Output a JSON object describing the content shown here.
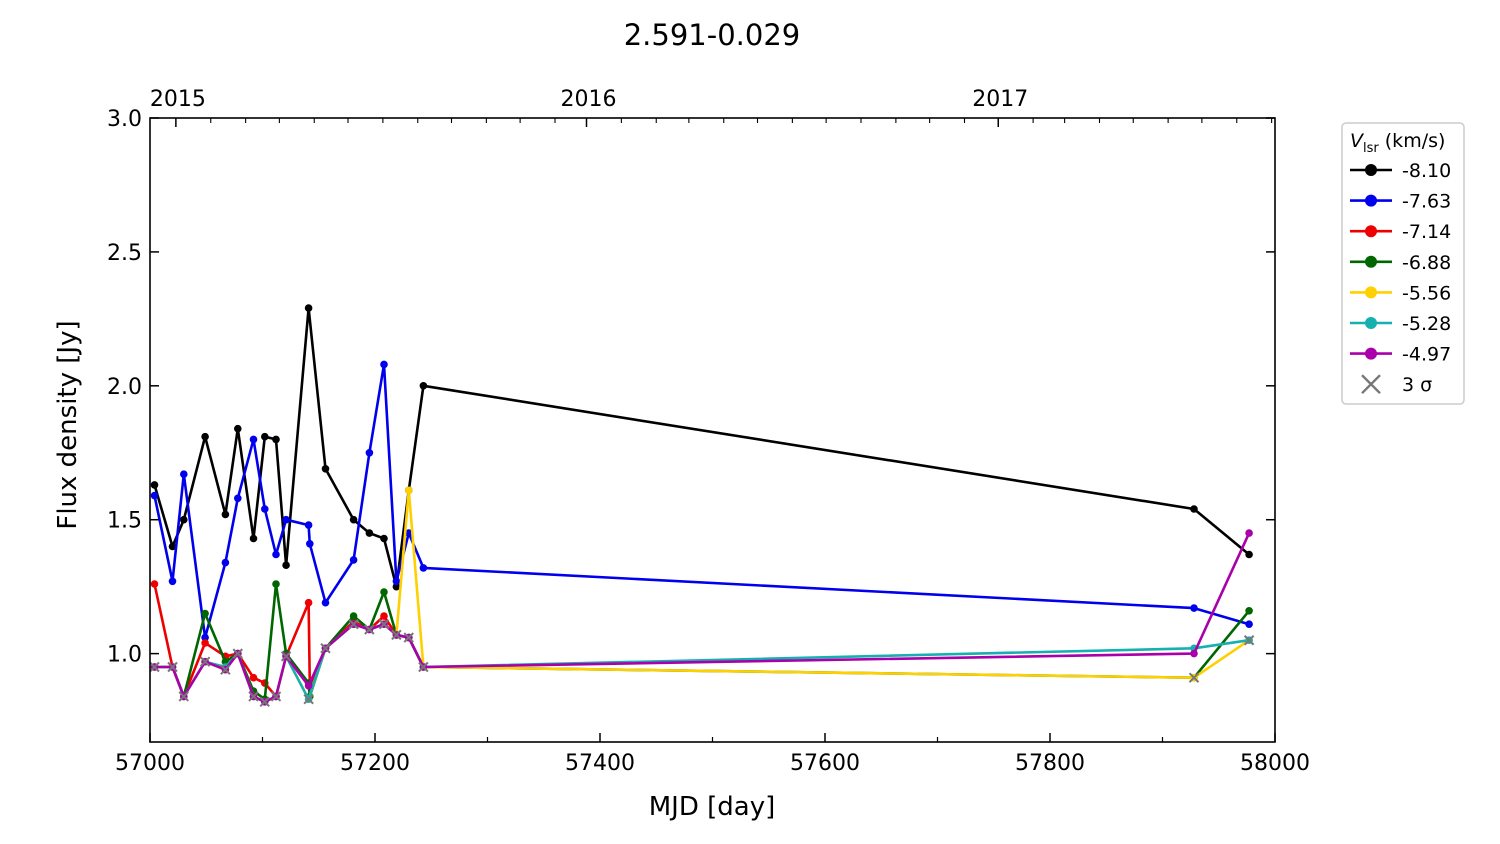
{
  "chart_data": {
    "type": "line",
    "title": "2.591-0.029",
    "xlabel": "MJD [day]",
    "ylabel": "Flux density [Jy]",
    "xlim": [
      57000,
      58000
    ],
    "ylim": [
      0.67,
      3.0
    ],
    "x_ticks": [
      "57000",
      "57200",
      "57400",
      "57600",
      "57800",
      "58000"
    ],
    "y_ticks": [
      "1.0",
      "1.5",
      "2.0",
      "2.5",
      "3.0"
    ],
    "top_axis": {
      "ticks": [
        {
          "label": "2015",
          "mjd": 57023
        },
        {
          "label": "2016",
          "mjd": 57388
        },
        {
          "label": "2017",
          "mjd": 57754
        }
      ]
    },
    "legend": {
      "title_main": "V",
      "title_sub": "lsr",
      "title_rest": " (km/s)",
      "sigma_label": "3 σ",
      "placement": "outside-right"
    },
    "sigma_marker_color": "#777777",
    "series": [
      {
        "name": "-8.10",
        "color": "#000000",
        "points": [
          [
            57004,
            1.63
          ],
          [
            57020,
            1.4
          ],
          [
            57030,
            1.5
          ],
          [
            57049,
            1.81
          ],
          [
            57067,
            1.52
          ],
          [
            57078,
            1.84
          ],
          [
            57092,
            1.43
          ],
          [
            57102,
            1.81
          ],
          [
            57112,
            1.8
          ],
          [
            57121,
            1.33
          ],
          [
            57141,
            2.29
          ],
          [
            57156,
            1.69
          ],
          [
            57181,
            1.5
          ],
          [
            57195,
            1.45
          ],
          [
            57208,
            1.43
          ],
          [
            57219,
            1.25
          ],
          [
            57230,
            1.61
          ],
          [
            57243,
            2.0
          ],
          [
            57928,
            1.54
          ],
          [
            57977,
            1.37
          ]
        ]
      },
      {
        "name": "-7.63",
        "color": "#0000ee",
        "points": [
          [
            57004,
            1.59
          ],
          [
            57020,
            1.27
          ],
          [
            57030,
            1.67
          ],
          [
            57049,
            1.06
          ],
          [
            57067,
            1.34
          ],
          [
            57078,
            1.58
          ],
          [
            57092,
            1.8
          ],
          [
            57102,
            1.54
          ],
          [
            57112,
            1.37
          ],
          [
            57121,
            1.5
          ],
          [
            57141,
            1.48
          ],
          [
            57142,
            1.41
          ],
          [
            57156,
            1.19
          ],
          [
            57181,
            1.35
          ],
          [
            57195,
            1.75
          ],
          [
            57208,
            2.08
          ],
          [
            57219,
            1.27
          ],
          [
            57230,
            1.45
          ],
          [
            57243,
            1.32
          ],
          [
            57928,
            1.17
          ],
          [
            57977,
            1.11
          ]
        ]
      },
      {
        "name": "-7.14",
        "color": "#ee0000",
        "points": [
          [
            57004,
            1.26
          ],
          [
            57020,
            0.95
          ],
          [
            57030,
            0.84
          ],
          [
            57049,
            1.04
          ],
          [
            57067,
            0.99
          ],
          [
            57078,
            1.0
          ],
          [
            57092,
            0.91
          ],
          [
            57102,
            0.89
          ],
          [
            57112,
            0.84
          ]
        ],
        "segments": [
          [
            [
              57121,
              0.99
            ],
            [
              57141,
              1.19
            ],
            [
              57142,
              0.88
            ],
            [
              57156,
              1.02
            ],
            [
              57181,
              1.12
            ],
            [
              57195,
              1.09
            ],
            [
              57208,
              1.14
            ],
            [
              57219,
              1.07
            ],
            [
              57230,
              1.06
            ],
            [
              57243,
              0.95
            ]
          ]
        ]
      },
      {
        "name": "-6.88",
        "color": "#006600",
        "points": [
          [
            57004,
            0.95
          ],
          [
            57020,
            0.95
          ],
          [
            57030,
            0.84
          ],
          [
            57049,
            1.15
          ],
          [
            57067,
            0.97
          ],
          [
            57078,
            1.0
          ],
          [
            57092,
            0.86
          ],
          [
            57102,
            0.83
          ],
          [
            57112,
            1.26
          ],
          [
            57121,
            1.0
          ],
          [
            57141,
            0.89
          ],
          [
            57142,
            0.84
          ],
          [
            57156,
            1.02
          ],
          [
            57181,
            1.14
          ],
          [
            57195,
            1.09
          ],
          [
            57208,
            1.23
          ],
          [
            57219,
            1.07
          ],
          [
            57230,
            1.06
          ],
          [
            57243,
            0.95
          ],
          [
            57928,
            0.91
          ],
          [
            57977,
            1.16
          ]
        ]
      },
      {
        "name": "-5.56",
        "color": "#ffd000",
        "points": [
          [
            57004,
            0.95
          ],
          [
            57020,
            0.95
          ],
          [
            57030,
            0.84
          ],
          [
            57049,
            0.97
          ],
          [
            57067,
            0.94
          ],
          [
            57078,
            1.0
          ],
          [
            57092,
            0.84
          ],
          [
            57102,
            0.82
          ],
          [
            57112,
            0.84
          ],
          [
            57121,
            0.99
          ],
          [
            57141,
            0.83
          ],
          [
            57156,
            1.02
          ],
          [
            57181,
            1.11
          ],
          [
            57195,
            1.09
          ],
          [
            57208,
            1.11
          ],
          [
            57219,
            1.07
          ],
          [
            57230,
            1.61
          ],
          [
            57243,
            0.95
          ],
          [
            57928,
            0.91
          ],
          [
            57977,
            1.05
          ]
        ]
      },
      {
        "name": "-5.28",
        "color": "#17b0b0",
        "points": [
          [
            57004,
            0.95
          ],
          [
            57020,
            0.95
          ],
          [
            57030,
            0.84
          ],
          [
            57049,
            0.97
          ],
          [
            57067,
            0.95
          ],
          [
            57078,
            1.0
          ],
          [
            57092,
            0.84
          ],
          [
            57102,
            0.82
          ],
          [
            57112,
            0.84
          ],
          [
            57121,
            0.99
          ],
          [
            57141,
            0.83
          ],
          [
            57156,
            1.02
          ],
          [
            57181,
            1.11
          ],
          [
            57195,
            1.09
          ],
          [
            57208,
            1.11
          ],
          [
            57219,
            1.07
          ],
          [
            57230,
            1.06
          ],
          [
            57243,
            0.95
          ],
          [
            57928,
            1.02
          ],
          [
            57977,
            1.05
          ]
        ]
      },
      {
        "name": "-4.97",
        "color": "#aa00aa",
        "points": [
          [
            57004,
            0.95
          ],
          [
            57020,
            0.95
          ],
          [
            57030,
            0.84
          ],
          [
            57049,
            0.97
          ],
          [
            57067,
            0.94
          ],
          [
            57078,
            1.0
          ],
          [
            57092,
            0.84
          ],
          [
            57102,
            0.82
          ],
          [
            57112,
            0.84
          ],
          [
            57121,
            0.99
          ],
          [
            57141,
            0.88
          ],
          [
            57156,
            1.02
          ],
          [
            57181,
            1.11
          ],
          [
            57195,
            1.09
          ],
          [
            57208,
            1.11
          ],
          [
            57219,
            1.07
          ],
          [
            57230,
            1.06
          ],
          [
            57243,
            0.95
          ],
          [
            57928,
            1.0
          ],
          [
            57977,
            1.45
          ]
        ]
      }
    ],
    "sigma_points": [
      [
        57004,
        0.95
      ],
      [
        57020,
        0.95
      ],
      [
        57030,
        0.84
      ],
      [
        57049,
        0.97
      ],
      [
        57067,
        0.94
      ],
      [
        57078,
        1.0
      ],
      [
        57092,
        0.84
      ],
      [
        57102,
        0.82
      ],
      [
        57112,
        0.84
      ],
      [
        57121,
        0.99
      ],
      [
        57141,
        0.83
      ],
      [
        57156,
        1.02
      ],
      [
        57181,
        1.11
      ],
      [
        57195,
        1.09
      ],
      [
        57208,
        1.11
      ],
      [
        57219,
        1.07
      ],
      [
        57230,
        1.06
      ],
      [
        57243,
        0.95
      ],
      [
        57928,
        0.91
      ],
      [
        57977,
        1.05
      ]
    ]
  }
}
